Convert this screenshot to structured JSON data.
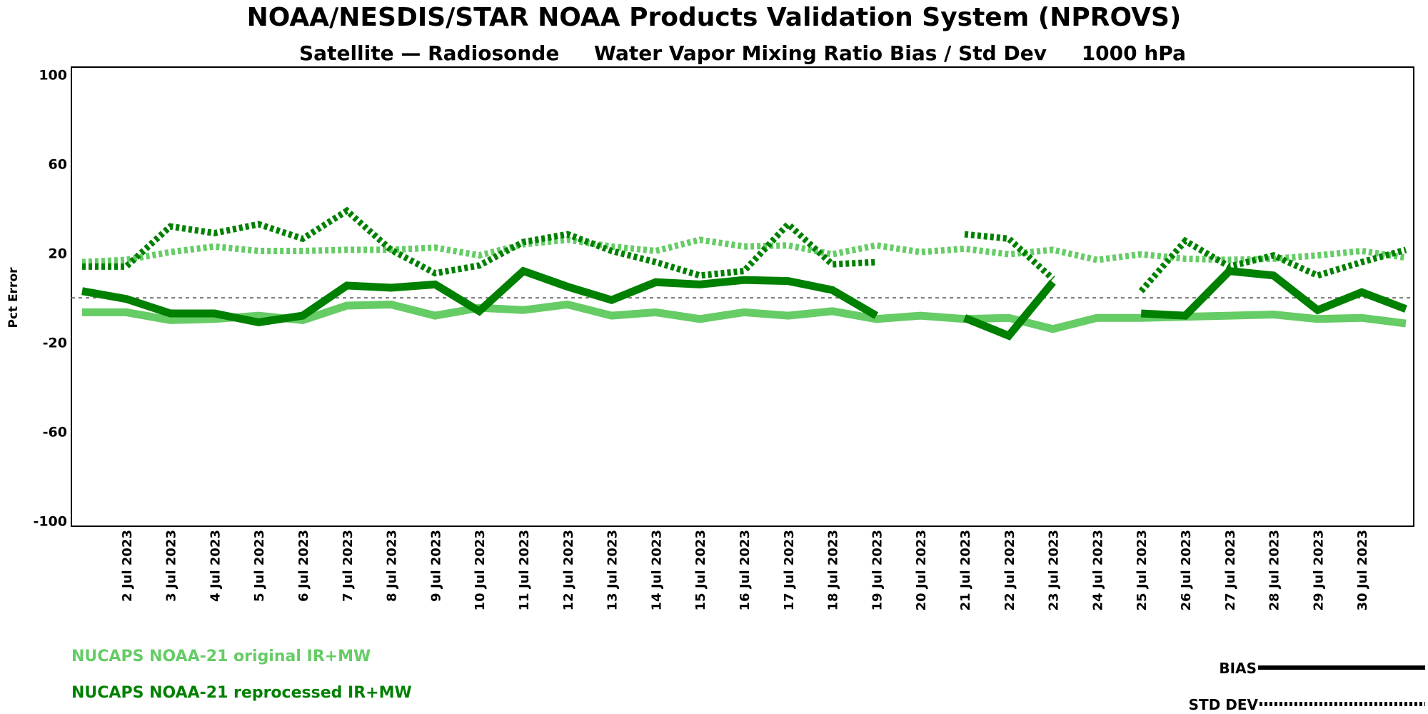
{
  "chart_data": {
    "type": "line",
    "title": "NOAA/NESDIS/STAR  NOAA Products Validation System (NPROVS)",
    "subtitle": "Satellite — Radiosonde     Water Vapor Mixing Ratio Bias / Std Dev     1000 hPa",
    "ylabel": "Pct Error",
    "ylim": [
      -100,
      100
    ],
    "yticks": [
      "100",
      "60",
      "20",
      "-20",
      "-60",
      "-100"
    ],
    "x_days": [
      1,
      2,
      3,
      4,
      5,
      6,
      7,
      8,
      9,
      10,
      11,
      12,
      13,
      14,
      15,
      16,
      17,
      18,
      19,
      20,
      21,
      22,
      23,
      24,
      25,
      26,
      27,
      28,
      29,
      30,
      31
    ],
    "xtick_labels": [
      "2 Jul 2023",
      "3 Jul 2023",
      "4 Jul 2023",
      "5 Jul 2023",
      "6 Jul 2023",
      "7 Jul 2023",
      "8 Jul 2023",
      "9 Jul 2023",
      "10 Jul 2023",
      "11 Jul 2023",
      "12 Jul 2023",
      "13 Jul 2023",
      "14 Jul 2023",
      "15 Jul 2023",
      "16 Jul 2023",
      "17 Jul 2023",
      "18 Jul 2023",
      "19 Jul 2023",
      "20 Jul 2023",
      "21 Jul 2023",
      "22 Jul 2023",
      "23 Jul 2023",
      "24 Jul 2023",
      "25 Jul 2023",
      "26 Jul 2023",
      "27 Jul 2023",
      "28 Jul 2023",
      "29 Jul 2023",
      "30 Jul 2023"
    ],
    "series": [
      {
        "name": "NUCAPS NOAA-21 original IR+MW",
        "stat": "bias",
        "color": "#66cc66",
        "values": [
          -6.5,
          -6.5,
          -10,
          -9.5,
          -8,
          -10,
          -3.5,
          -3,
          -8,
          -4.5,
          -5.5,
          -3,
          -8,
          -6.5,
          -9.5,
          -6.5,
          -8,
          -6,
          -9.5,
          -8,
          -9.5,
          -9,
          -14,
          -9,
          -9,
          -8.5,
          -8,
          -7.5,
          -9.5,
          -9,
          -11.5
        ]
      },
      {
        "name": "NUCAPS NOAA-21 original IR+MW",
        "stat": "std",
        "color": "#66cc66",
        "values": [
          16,
          17,
          20.5,
          23,
          21,
          21,
          21.5,
          21.5,
          22.5,
          19,
          24,
          26,
          23,
          21,
          26,
          23,
          23.5,
          19.5,
          23.5,
          20.5,
          22,
          19.5,
          21.5,
          17,
          19.5,
          17.5,
          17,
          17.5,
          19,
          21,
          18
        ]
      },
      {
        "name": "NUCAPS NOAA-21 reprocessed IR+MW",
        "stat": "bias",
        "color": "#008000",
        "values": [
          3,
          -0.5,
          -7,
          -7,
          -11,
          -8,
          5.5,
          4.5,
          6,
          -6,
          12,
          5,
          -1,
          7,
          6,
          8,
          7.5,
          3.5,
          -8,
          null,
          -9,
          -17,
          7,
          null,
          -7,
          -8,
          12,
          10,
          -5.5,
          2.5,
          -5
        ]
      },
      {
        "name": "NUCAPS NOAA-21 reprocessed IR+MW",
        "stat": "std",
        "color": "#008000",
        "values": [
          14,
          14,
          32,
          29,
          33,
          26.5,
          39,
          21.5,
          11,
          14.5,
          25,
          28.5,
          21,
          16,
          10,
          12,
          33,
          15,
          16,
          null,
          28.5,
          26.5,
          8.5,
          null,
          3,
          25.5,
          14,
          19,
          10,
          16,
          21.5
        ]
      }
    ],
    "legend": {
      "items": [
        "NUCAPS NOAA-21 original IR+MW",
        "NUCAPS NOAA-21 reprocessed IR+MW"
      ],
      "styles": [
        "BIAS",
        "STD DEV"
      ],
      "placement": "bottom"
    },
    "reference_line": 0
  }
}
